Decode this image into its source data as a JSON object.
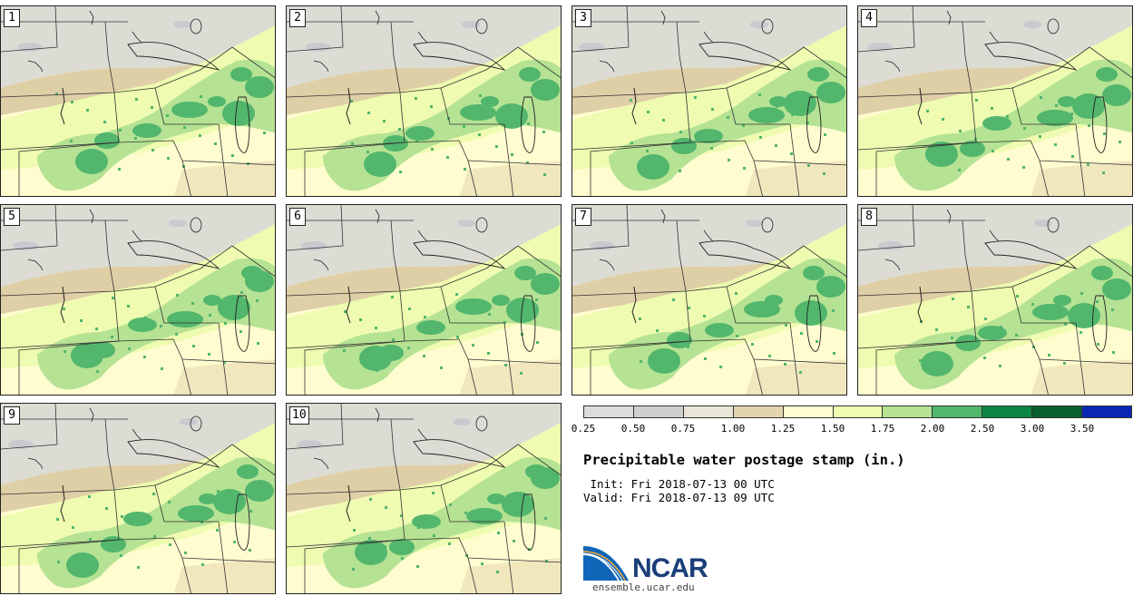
{
  "panels": [
    {
      "label": "1"
    },
    {
      "label": "2"
    },
    {
      "label": "3"
    },
    {
      "label": "4"
    },
    {
      "label": "5"
    },
    {
      "label": "6"
    },
    {
      "label": "7"
    },
    {
      "label": "8"
    },
    {
      "label": "9"
    },
    {
      "label": "10"
    }
  ],
  "legend": {
    "ticks": [
      "0.25",
      "0.50",
      "0.75",
      "1.00",
      "1.25",
      "1.50",
      "1.75",
      "2.00",
      "2.50",
      "3.00",
      "3.50"
    ],
    "colors": [
      "#dcdcdc",
      "#cfcfcf",
      "#e9e6d8",
      "#e2d4ad",
      "#fffccf",
      "#eefbb0",
      "#b5e293",
      "#52b66c",
      "#0d8744",
      "#075f2e",
      "#0a27b6"
    ]
  },
  "title": "Precipitable water postage stamp (in.)",
  "init": " Init: Fri 2018-07-13 00 UTC",
  "valid": "Valid: Fri 2018-07-13 09 UTC",
  "logo_text": "NCAR",
  "url": "ensemble.ucar.edu",
  "colors": {
    "dry": "#dcdcd5",
    "tan": "#dfcfa6",
    "lightyellow": "#fffccf",
    "yellowgreen": "#eefbb0",
    "lightgreen": "#b5e293",
    "green": "#52b66c"
  }
}
